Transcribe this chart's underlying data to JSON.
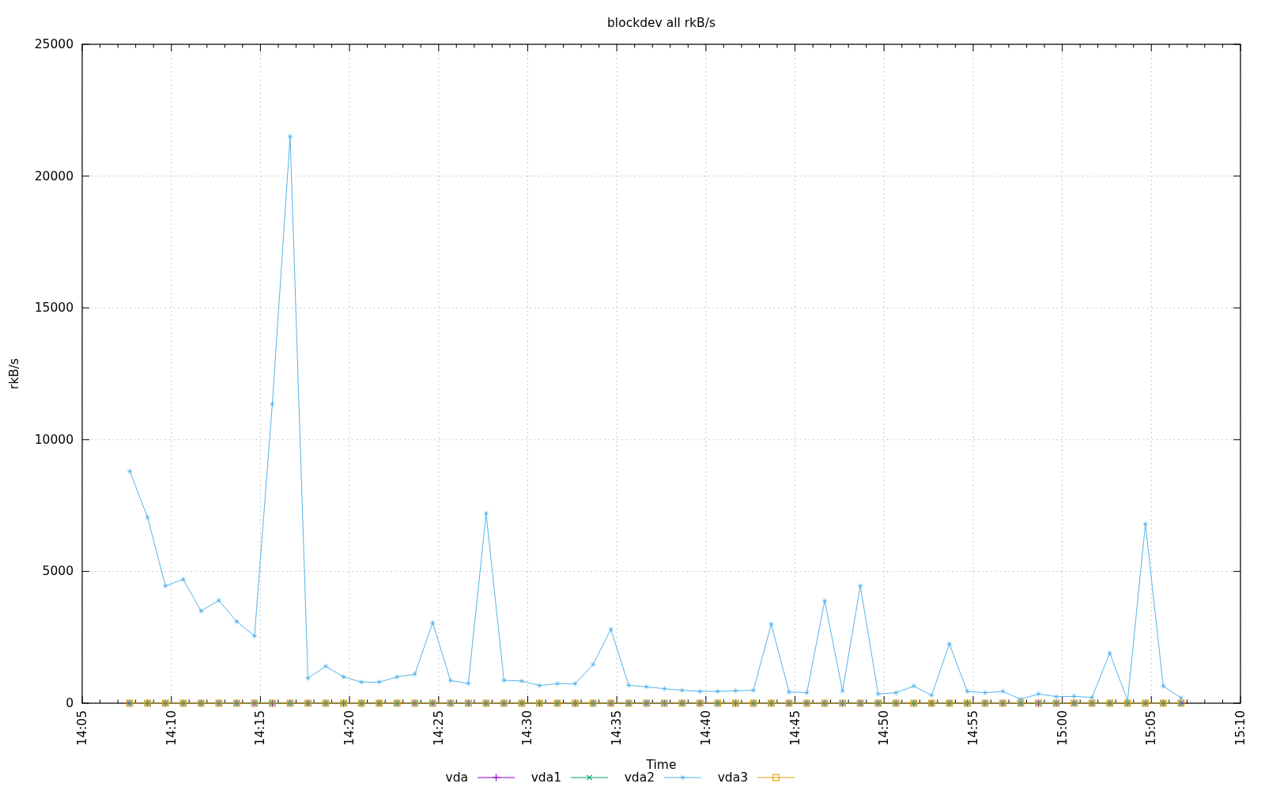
{
  "chart_data": {
    "type": "line",
    "title": "blockdev all rkB/s",
    "xlabel": "Time",
    "ylabel": "rkB/s",
    "x": [
      14.12778,
      14.14444,
      14.16111,
      14.17778,
      14.19444,
      14.21111,
      14.22778,
      14.24444,
      14.26111,
      14.27778,
      14.29444,
      14.31111,
      14.32778,
      14.34444,
      14.36111,
      14.37778,
      14.39444,
      14.41111,
      14.42778,
      14.44444,
      14.46111,
      14.47778,
      14.49444,
      14.51111,
      14.52778,
      14.54444,
      14.56111,
      14.57778,
      14.59444,
      14.61111,
      14.62778,
      14.64444,
      14.66111,
      14.67778,
      14.69444,
      14.71111,
      14.72778,
      14.74444,
      14.76111,
      14.77778,
      14.79444,
      14.81111,
      14.82778,
      14.84444,
      14.86111,
      14.87778,
      14.89444,
      14.91111,
      14.92778,
      14.94444,
      14.96111,
      14.97778,
      14.99444,
      15.01111,
      15.02778,
      15.04444,
      15.06111,
      15.07778,
      15.09444,
      15.11111
    ],
    "series": [
      {
        "name": "vda",
        "color": "#9400d3",
        "marker": "cross",
        "values": [
          0,
          0,
          0,
          0,
          0,
          0,
          0,
          0,
          0,
          0,
          0,
          0,
          0,
          0,
          0,
          0,
          0,
          0,
          0,
          0,
          0,
          0,
          0,
          0,
          0,
          0,
          0,
          0,
          0,
          0,
          0,
          0,
          0,
          0,
          0,
          0,
          0,
          0,
          0,
          0,
          0,
          0,
          0,
          0,
          0,
          0,
          0,
          0,
          0,
          0,
          0,
          0,
          0,
          0,
          0,
          0,
          0,
          0,
          0,
          0
        ]
      },
      {
        "name": "vda1",
        "color": "#009e73",
        "marker": "cross",
        "values": [
          0,
          0,
          0,
          0,
          0,
          0,
          0,
          0,
          0,
          0,
          0,
          0,
          0,
          0,
          0,
          0,
          0,
          0,
          0,
          0,
          0,
          0,
          0,
          0,
          0,
          0,
          0,
          0,
          0,
          0,
          0,
          0,
          0,
          0,
          0,
          0,
          0,
          0,
          0,
          0,
          0,
          0,
          0,
          0,
          0,
          0,
          0,
          0,
          0,
          0,
          0,
          0,
          0,
          0,
          0,
          0,
          0,
          0,
          0,
          0
        ]
      },
      {
        "name": "vda2",
        "color": "#56b4e9",
        "marker": "star",
        "values": [
          8800,
          7050,
          4450,
          4700,
          3500,
          3900,
          3100,
          2550,
          11350,
          21500,
          950,
          1400,
          1000,
          800,
          800,
          1000,
          1100,
          3050,
          860,
          750,
          7200,
          870,
          840,
          670,
          740,
          740,
          1470,
          2800,
          680,
          620,
          550,
          490,
          450,
          450,
          470,
          490,
          3000,
          430,
          400,
          3880,
          470,
          4450,
          350,
          400,
          650,
          300,
          2250,
          450,
          400,
          450,
          150,
          350,
          250,
          260,
          220,
          1900,
          100,
          6800,
          650,
          200
        ]
      },
      {
        "name": "vda3",
        "color": "#e69f00",
        "marker": "square",
        "values": [
          0,
          0,
          0,
          0,
          0,
          0,
          0,
          0,
          0,
          0,
          0,
          0,
          0,
          0,
          0,
          0,
          0,
          0,
          0,
          0,
          0,
          0,
          0,
          0,
          0,
          0,
          0,
          0,
          0,
          0,
          0,
          0,
          0,
          0,
          0,
          0,
          0,
          0,
          0,
          0,
          0,
          0,
          0,
          0,
          0,
          0,
          0,
          0,
          0,
          0,
          0,
          0,
          0,
          0,
          0,
          0,
          0,
          0,
          0,
          0
        ]
      }
    ],
    "xlim": [
      14.0833,
      15.1667
    ],
    "xticks": [
      {
        "value": 14.0833,
        "label": "14:05"
      },
      {
        "value": 14.1,
        "label": null
      },
      {
        "value": 14.1167,
        "label": null
      },
      {
        "value": 14.1333,
        "label": null
      },
      {
        "value": 14.15,
        "label": null
      },
      {
        "value": 14.1667,
        "label": "14:10"
      },
      {
        "value": 14.1833,
        "label": null
      },
      {
        "value": 14.2,
        "label": null
      },
      {
        "value": 14.2167,
        "label": null
      },
      {
        "value": 14.2333,
        "label": null
      },
      {
        "value": 14.25,
        "label": "14:15"
      },
      {
        "value": 14.2667,
        "label": null
      },
      {
        "value": 14.2833,
        "label": null
      },
      {
        "value": 14.3,
        "label": null
      },
      {
        "value": 14.3167,
        "label": null
      },
      {
        "value": 14.3333,
        "label": "14:20"
      },
      {
        "value": 14.35,
        "label": null
      },
      {
        "value": 14.3667,
        "label": null
      },
      {
        "value": 14.3833,
        "label": null
      },
      {
        "value": 14.4,
        "label": null
      },
      {
        "value": 14.4167,
        "label": "14:25"
      },
      {
        "value": 14.4333,
        "label": null
      },
      {
        "value": 14.45,
        "label": null
      },
      {
        "value": 14.4667,
        "label": null
      },
      {
        "value": 14.4833,
        "label": null
      },
      {
        "value": 14.5,
        "label": "14:30"
      },
      {
        "value": 14.5167,
        "label": null
      },
      {
        "value": 14.5333,
        "label": null
      },
      {
        "value": 14.55,
        "label": null
      },
      {
        "value": 14.5667,
        "label": null
      },
      {
        "value": 14.5833,
        "label": "14:35"
      },
      {
        "value": 14.6,
        "label": null
      },
      {
        "value": 14.6167,
        "label": null
      },
      {
        "value": 14.6333,
        "label": null
      },
      {
        "value": 14.65,
        "label": null
      },
      {
        "value": 14.6667,
        "label": "14:40"
      },
      {
        "value": 14.6833,
        "label": null
      },
      {
        "value": 14.7,
        "label": null
      },
      {
        "value": 14.7167,
        "label": null
      },
      {
        "value": 14.7333,
        "label": null
      },
      {
        "value": 14.75,
        "label": "14:45"
      },
      {
        "value": 14.7667,
        "label": null
      },
      {
        "value": 14.7833,
        "label": null
      },
      {
        "value": 14.8,
        "label": null
      },
      {
        "value": 14.8167,
        "label": null
      },
      {
        "value": 14.8333,
        "label": "14:50"
      },
      {
        "value": 14.85,
        "label": null
      },
      {
        "value": 14.8667,
        "label": null
      },
      {
        "value": 14.8833,
        "label": null
      },
      {
        "value": 14.9,
        "label": null
      },
      {
        "value": 14.9167,
        "label": "14:55"
      },
      {
        "value": 14.9333,
        "label": null
      },
      {
        "value": 14.95,
        "label": null
      },
      {
        "value": 14.9667,
        "label": null
      },
      {
        "value": 14.9833,
        "label": null
      },
      {
        "value": 15,
        "label": "15:00"
      },
      {
        "value": 15.0167,
        "label": null
      },
      {
        "value": 15.0333,
        "label": null
      },
      {
        "value": 15.05,
        "label": null
      },
      {
        "value": 15.0667,
        "label": null
      },
      {
        "value": 15.0833,
        "label": "15:05"
      },
      {
        "value": 15.1,
        "label": null
      },
      {
        "value": 15.1167,
        "label": null
      },
      {
        "value": 15.1333,
        "label": null
      },
      {
        "value": 15.15,
        "label": null
      },
      {
        "value": 15.1667,
        "label": "15:10"
      }
    ],
    "ylim": [
      0,
      25000
    ],
    "yticks": [
      0,
      5000,
      10000,
      15000,
      20000,
      25000
    ],
    "grid": true,
    "legend": "bottom",
    "line_style": "solid"
  }
}
